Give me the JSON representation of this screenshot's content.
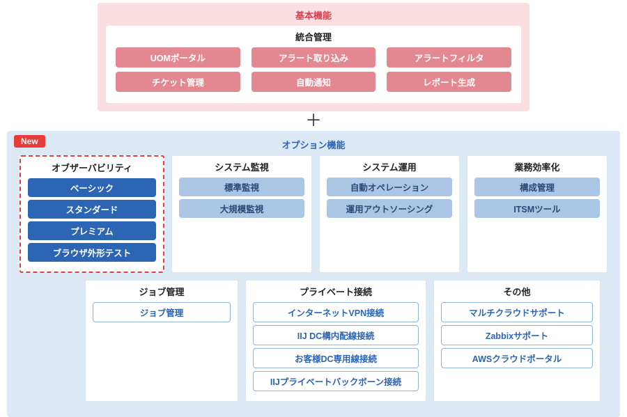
{
  "colors": {
    "basic_bg": "#fadfe2",
    "basic_title": "#d9414f",
    "basic_pill": "#e38890",
    "option_bg": "#dce8f4",
    "option_title": "#2b65b3",
    "new_bg": "#e63c3c",
    "highlight_border": "#e63c3c",
    "obs_pill_bg": "#2b65b3",
    "std_pill_bg": "#aac6e4",
    "std_pill_text": "#2b4a75",
    "outline_border": "#8fb3da",
    "outline_text": "#2b65b3"
  },
  "plus": "＋",
  "basic": {
    "title": "基本機能",
    "subtitle": "統合管理",
    "rows": [
      [
        "UOMポータル",
        "アラート取り込み",
        "アラートフィルタ"
      ],
      [
        "チケット管理",
        "自動通知",
        "レポート生成"
      ]
    ]
  },
  "option": {
    "title": "オプション機能",
    "new_label": "New",
    "row1": [
      {
        "key": "obs",
        "title": "オブザーバビリティ",
        "highlight": true,
        "items": [
          "ベーシック",
          "スタンダード",
          "プレミアム",
          "ブラウザ外形テスト"
        ]
      },
      {
        "key": "mon",
        "title": "システム監視",
        "style": "std",
        "items": [
          "標準監視",
          "大規模監視"
        ]
      },
      {
        "key": "ops",
        "title": "システム運用",
        "style": "std",
        "items": [
          "自動オペレーション",
          "運用アウトソーシング"
        ]
      },
      {
        "key": "eff",
        "title": "業務効率化",
        "style": "std",
        "items": [
          "構成管理",
          "ITSMツール"
        ]
      }
    ],
    "row2": [
      {
        "key": "job",
        "title": "ジョブ管理",
        "cls": "c-job",
        "items": [
          "ジョブ管理"
        ]
      },
      {
        "key": "priv",
        "title": "プライベート接続",
        "cls": "c-priv",
        "items": [
          "インターネットVPN接続",
          "IIJ DC構内配線接続",
          "お客様DC専用線接続",
          "IIJプライベートバックボーン接続"
        ]
      },
      {
        "key": "other",
        "title": "その他",
        "cls": "c-other",
        "items": [
          "マルチクラウドサポート",
          "Zabbixサポート",
          "AWSクラウドポータル"
        ]
      }
    ]
  }
}
